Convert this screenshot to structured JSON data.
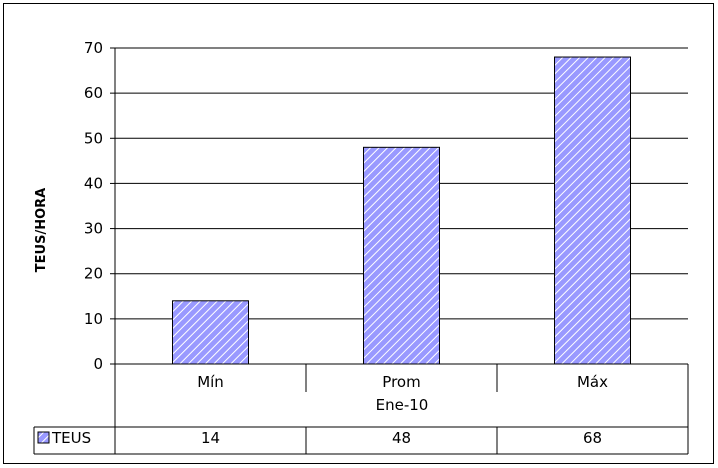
{
  "chart_data": {
    "type": "bar",
    "title": "",
    "ylabel": "TEUS/HORA",
    "ylim": [
      0,
      70
    ],
    "yticks": [
      0,
      10,
      20,
      30,
      40,
      50,
      60,
      70
    ],
    "categories": [
      "Mín",
      "Prom",
      "Máx"
    ],
    "group_label": "Ene-10",
    "grid": true,
    "series": [
      {
        "name": "TEUS",
        "values": [
          14,
          48,
          68
        ]
      }
    ],
    "table_values": [
      "14",
      "48",
      "68"
    ],
    "colors": {
      "bar_fill": "#9999ff",
      "bar_hatch": "#ffffff",
      "bar_stroke": "#000000"
    }
  }
}
